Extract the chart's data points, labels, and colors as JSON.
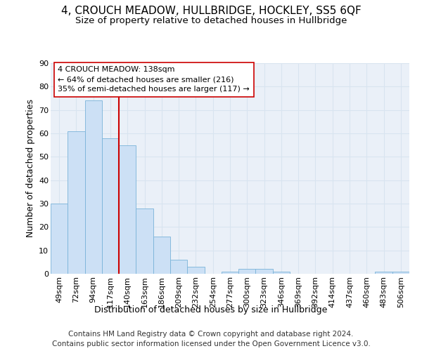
{
  "title": "4, CROUCH MEADOW, HULLBRIDGE, HOCKLEY, SS5 6QF",
  "subtitle": "Size of property relative to detached houses in Hullbridge",
  "xlabel": "Distribution of detached houses by size in Hullbridge",
  "ylabel": "Number of detached properties",
  "bar_color": "#cce0f5",
  "bar_edge_color": "#7ab3d9",
  "categories": [
    "49sqm",
    "72sqm",
    "94sqm",
    "117sqm",
    "140sqm",
    "163sqm",
    "186sqm",
    "209sqm",
    "232sqm",
    "254sqm",
    "277sqm",
    "300sqm",
    "323sqm",
    "346sqm",
    "369sqm",
    "392sqm",
    "414sqm",
    "437sqm",
    "460sqm",
    "483sqm",
    "506sqm"
  ],
  "values": [
    30,
    61,
    74,
    58,
    55,
    28,
    16,
    6,
    3,
    0,
    1,
    2,
    2,
    1,
    0,
    0,
    0,
    0,
    0,
    1,
    1
  ],
  "vline_index": 4,
  "property_line_label": "4 CROUCH MEADOW: 138sqm",
  "annotation_line1": "← 64% of detached houses are smaller (216)",
  "annotation_line2": "35% of semi-detached houses are larger (117) →",
  "vline_color": "#cc0000",
  "annotation_box_facecolor": "#ffffff",
  "annotation_box_edgecolor": "#cc0000",
  "ylim": [
    0,
    90
  ],
  "yticks": [
    0,
    10,
    20,
    30,
    40,
    50,
    60,
    70,
    80,
    90
  ],
  "grid_color": "#d8e4f0",
  "background_color": "#eaf0f8",
  "footer1": "Contains HM Land Registry data © Crown copyright and database right 2024.",
  "footer2": "Contains public sector information licensed under the Open Government Licence v3.0.",
  "title_fontsize": 11,
  "subtitle_fontsize": 9.5,
  "axis_label_fontsize": 9,
  "tick_fontsize": 8,
  "annotation_fontsize": 8,
  "footer_fontsize": 7.5
}
